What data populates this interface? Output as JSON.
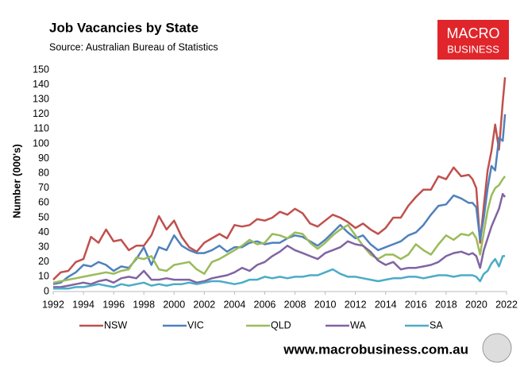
{
  "chart_data": {
    "type": "line",
    "title": "Job Vacancies by State",
    "subtitle": "Source: Australian Bureau of Statistics",
    "y_label": "Number (000's)",
    "logo": [
      "MACRO",
      "BUSINESS"
    ],
    "footer": "www.macrobusiness.com.au",
    "x": [
      1992,
      1992.5,
      1993,
      1993.5,
      1994,
      1994.5,
      1995,
      1995.5,
      1996,
      1996.5,
      1997,
      1997.5,
      1998,
      1998.5,
      1999,
      1999.5,
      2000,
      2000.5,
      2001,
      2001.5,
      2002,
      2002.5,
      2003,
      2003.5,
      2004,
      2004.5,
      2005,
      2005.5,
      2006,
      2006.5,
      2007,
      2007.5,
      2008,
      2008.5,
      2009,
      2009.5,
      2010,
      2010.5,
      2011,
      2011.5,
      2012,
      2012.5,
      2013,
      2013.5,
      2014,
      2014.5,
      2015,
      2015.5,
      2016,
      2016.5,
      2017,
      2017.5,
      2018,
      2018.5,
      2019,
      2019.5,
      2019.75,
      2020,
      2020.25,
      2020.5,
      2020.75,
      2021,
      2021.25,
      2021.5,
      2021.75,
      2021.9
    ],
    "series": [
      {
        "name": "NSW",
        "color": "#c0504d",
        "values": [
          8,
          13,
          14,
          20,
          22,
          37,
          33,
          42,
          34,
          35,
          28,
          31,
          31,
          38,
          51,
          42,
          48,
          37,
          30,
          27,
          33,
          36,
          39,
          36,
          45,
          44,
          45,
          49,
          48,
          50,
          54,
          52,
          56,
          53,
          46,
          44,
          48,
          52,
          50,
          47,
          43,
          46,
          42,
          39,
          43,
          50,
          50,
          58,
          64,
          69,
          69,
          78,
          76,
          84,
          78,
          79,
          76,
          70,
          33,
          58,
          82,
          95,
          113,
          96,
          128,
          145
        ]
      },
      {
        "name": "VIC",
        "color": "#4f81bd",
        "values": [
          5,
          6,
          10,
          13,
          18,
          17,
          20,
          18,
          14,
          17,
          16,
          22,
          30,
          18,
          30,
          28,
          38,
          31,
          28,
          26,
          26,
          28,
          31,
          27,
          30,
          30,
          33,
          34,
          32,
          33,
          33,
          36,
          38,
          37,
          34,
          31,
          35,
          40,
          45,
          40,
          36,
          38,
          32,
          28,
          30,
          32,
          34,
          38,
          40,
          45,
          52,
          58,
          59,
          65,
          63,
          60,
          60,
          57,
          35,
          50,
          70,
          85,
          82,
          104,
          102,
          120
        ]
      },
      {
        "name": "QLD",
        "color": "#9bbb59",
        "values": [
          6,
          7,
          8,
          9,
          10,
          11,
          12,
          13,
          12,
          14,
          15,
          23,
          22,
          24,
          15,
          14,
          18,
          19,
          20,
          15,
          12,
          20,
          22,
          25,
          28,
          31,
          35,
          32,
          33,
          39,
          38,
          36,
          40,
          39,
          33,
          29,
          33,
          38,
          42,
          45,
          38,
          31,
          25,
          22,
          25,
          25,
          22,
          25,
          32,
          28,
          25,
          32,
          38,
          35,
          39,
          38,
          40,
          36,
          25,
          40,
          55,
          65,
          70,
          72,
          76,
          78
        ]
      },
      {
        "name": "WA",
        "color": "#8064a2",
        "values": [
          3,
          3,
          4,
          5,
          6,
          5,
          7,
          8,
          6,
          9,
          10,
          9,
          14,
          8,
          8,
          9,
          8,
          8,
          8,
          6,
          7,
          9,
          10,
          11,
          13,
          16,
          14,
          18,
          20,
          24,
          27,
          31,
          28,
          26,
          24,
          22,
          26,
          28,
          30,
          34,
          32,
          31,
          27,
          21,
          18,
          20,
          15,
          16,
          16,
          17,
          18,
          20,
          24,
          26,
          27,
          25,
          26,
          24,
          16,
          28,
          36,
          44,
          50,
          56,
          66,
          64
        ]
      },
      {
        "name": "SA",
        "color": "#4bacc6",
        "values": [
          2,
          2,
          2,
          3,
          3,
          4,
          5,
          4,
          3,
          5,
          4,
          5,
          6,
          4,
          5,
          4,
          5,
          5,
          6,
          5,
          6,
          7,
          7,
          6,
          5,
          6,
          8,
          8,
          10,
          9,
          10,
          9,
          10,
          10,
          11,
          11,
          13,
          15,
          12,
          10,
          10,
          9,
          8,
          7,
          8,
          9,
          9,
          10,
          10,
          9,
          10,
          11,
          11,
          10,
          11,
          11,
          11,
          10,
          7,
          12,
          14,
          19,
          22,
          17,
          24,
          24
        ]
      }
    ],
    "xlim": [
      1992,
      2022
    ],
    "xticks": [
      1992,
      1994,
      1996,
      1998,
      2000,
      2002,
      2004,
      2006,
      2008,
      2010,
      2012,
      2014,
      2016,
      2018,
      2020,
      2022
    ],
    "ylim": [
      0,
      150
    ],
    "yticks": [
      0,
      10,
      20,
      30,
      40,
      50,
      60,
      70,
      80,
      90,
      100,
      110,
      120,
      130,
      140,
      150
    ],
    "grid": false,
    "legend": "bottom"
  }
}
